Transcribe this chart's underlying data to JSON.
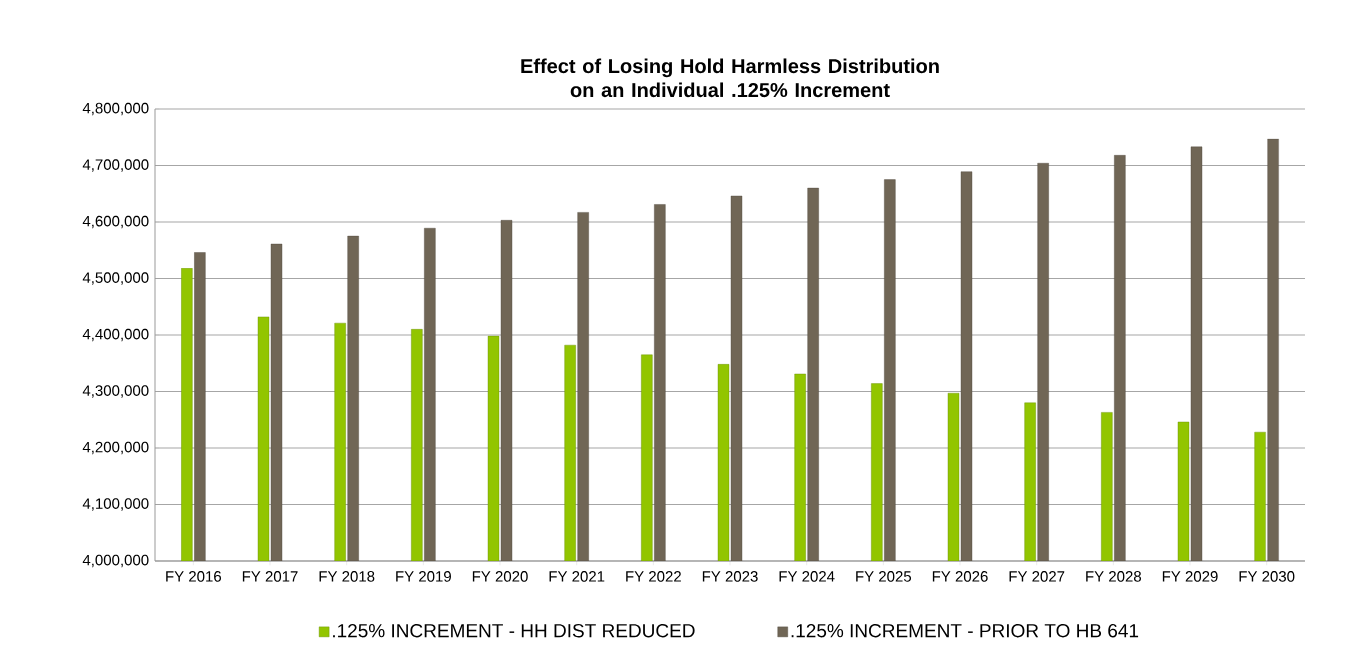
{
  "chart_data": {
    "type": "bar",
    "title": "Effect of Losing Hold Harmless Distribution on an Individual .125% Increment",
    "categories": [
      "FY 2016",
      "FY 2017",
      "FY 2018",
      "FY 2019",
      "FY 2020",
      "FY 2021",
      "FY 2022",
      "FY 2023",
      "FY 2024",
      "FY 2025",
      "FY 2026",
      "FY 2027",
      "FY 2028",
      "FY 2029",
      "FY 2030"
    ],
    "series": [
      {
        "name": ".125% INCREMENT - HH DIST REDUCED",
        "color": "#92c500",
        "values": [
          4518000,
          4432000,
          4421000,
          4410000,
          4398000,
          4382000,
          4365000,
          4348000,
          4331000,
          4314000,
          4297000,
          4280000,
          4263000,
          4246000,
          4228000
        ]
      },
      {
        "name": ".125% INCREMENT - PRIOR TO HB 641",
        "color": "#706656",
        "values": [
          4546000,
          4561000,
          4575000,
          4589000,
          4603000,
          4617000,
          4631000,
          4646000,
          4660000,
          4675000,
          4689000,
          4704000,
          4718000,
          4733000,
          4747000
        ]
      }
    ],
    "ylim": [
      4000000,
      4800000
    ],
    "yticks": [
      {
        "value": 4000000,
        "label": "4,000,000"
      },
      {
        "value": 4100000,
        "label": "4,100,000"
      },
      {
        "value": 4200000,
        "label": "4,200,000"
      },
      {
        "value": 4300000,
        "label": "4,300,000"
      },
      {
        "value": 4400000,
        "label": "4,400,000"
      },
      {
        "value": 4500000,
        "label": "4,500,000"
      },
      {
        "value": 4600000,
        "label": "4,600,000"
      },
      {
        "value": 4700000,
        "label": "4,700,000"
      },
      {
        "value": 4800000,
        "label": "4,800,000"
      }
    ],
    "grid": "y",
    "legend": "bottom"
  }
}
